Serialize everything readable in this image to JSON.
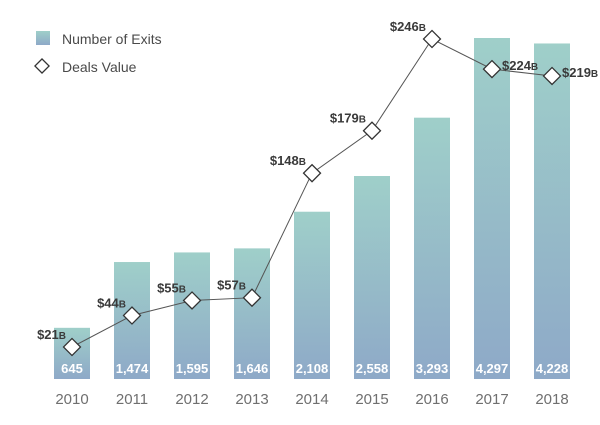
{
  "chart_data": {
    "type": "bar",
    "categories": [
      "2010",
      "2011",
      "2012",
      "2013",
      "2014",
      "2015",
      "2016",
      "2017",
      "2018"
    ],
    "series": [
      {
        "name": "Number of Exits",
        "type": "bar",
        "values": [
          645,
          1474,
          1595,
          1646,
          2108,
          2558,
          3293,
          4297,
          4228
        ],
        "labels": [
          "645",
          "1,474",
          "1,595",
          "1,646",
          "2,108",
          "2,558",
          "3,293",
          "4,297",
          "4,228"
        ]
      },
      {
        "name": "Deals Value",
        "type": "line",
        "unit": "B",
        "values": [
          21,
          44,
          55,
          57,
          148,
          179,
          246,
          224,
          219
        ],
        "labels": [
          "$21",
          "$44",
          "$55",
          "$57",
          "$148",
          "$179",
          "$246",
          "$224",
          "$219"
        ]
      }
    ],
    "legend": {
      "position": "top-left"
    },
    "grid": false,
    "colors": {
      "bar_top": "#9fcfc9",
      "bar_bottom": "#8ea9c8",
      "line": "#555555",
      "marker_fill": "#ffffff"
    }
  }
}
